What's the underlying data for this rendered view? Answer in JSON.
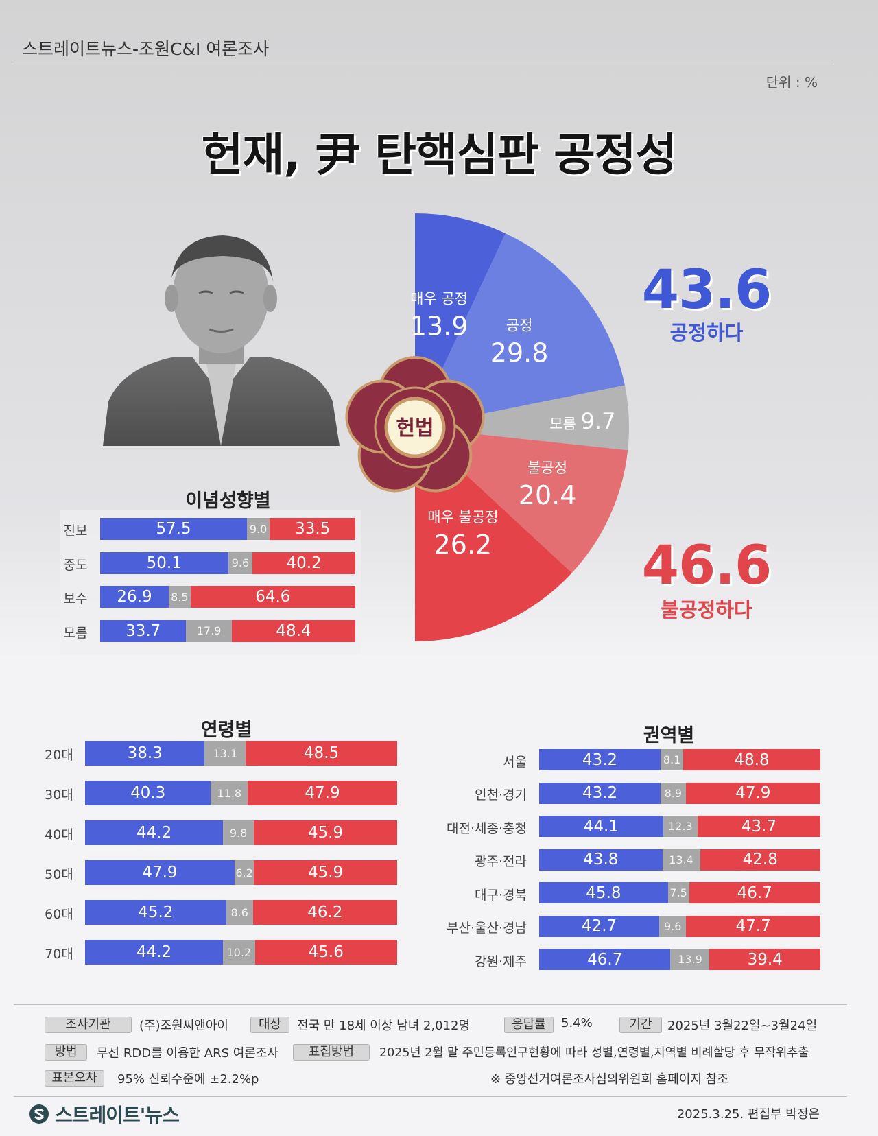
{
  "header": {
    "source": "스트레이트뉴스-조원C&I 여론조사",
    "unit": "단위 : %"
  },
  "title": "헌재, 尹 탄핵심판 공정성",
  "emblem": {
    "text": "헌법"
  },
  "colors": {
    "positive": "#4b60d9",
    "positive_light": "#6b80e0",
    "neutral": "#b4b4b4",
    "negative_light": "#e46f73",
    "negative": "#e5434a"
  },
  "totals": {
    "fair": {
      "value": "43.6",
      "label": "공정하다"
    },
    "unfair": {
      "value": "46.6",
      "label": "불공정하다"
    }
  },
  "chart_data": [
    {
      "type": "pie",
      "categories": [
        "매우 공정",
        "공정",
        "모름",
        "불공정",
        "매우 불공정"
      ],
      "values": [
        13.9,
        29.8,
        9.7,
        20.4,
        26.2
      ],
      "labels": [
        "13.9",
        "29.8",
        "9.7",
        "20.4",
        "26.2"
      ]
    },
    {
      "type": "bar",
      "title": "이념성향별",
      "categories": [
        "진보",
        "중도",
        "보수",
        "모름"
      ],
      "series": [
        {
          "values": [
            57.5,
            50.1,
            26.9,
            33.7
          ]
        },
        {
          "values": [
            9.0,
            9.6,
            8.5,
            17.9
          ]
        },
        {
          "values": [
            33.5,
            40.2,
            64.6,
            48.4
          ]
        }
      ],
      "labels": [
        [
          "57.5",
          "9.0",
          "33.5"
        ],
        [
          "50.1",
          "9.6",
          "40.2"
        ],
        [
          "26.9",
          "8.5",
          "64.6"
        ],
        [
          "33.7",
          "17.9",
          "48.4"
        ]
      ]
    },
    {
      "type": "bar",
      "title": "연령별",
      "categories": [
        "20대",
        "30대",
        "40대",
        "50대",
        "60대",
        "70대"
      ],
      "series": [
        {
          "values": [
            38.3,
            40.3,
            44.2,
            47.9,
            45.2,
            44.2
          ]
        },
        {
          "values": [
            13.1,
            11.8,
            9.8,
            6.2,
            8.6,
            10.2
          ]
        },
        {
          "values": [
            48.5,
            47.9,
            45.9,
            45.9,
            46.2,
            45.6
          ]
        }
      ],
      "labels": [
        [
          "38.3",
          "13.1",
          "48.5"
        ],
        [
          "40.3",
          "11.8",
          "47.9"
        ],
        [
          "44.2",
          "9.8",
          "45.9"
        ],
        [
          "47.9",
          "6.2",
          "45.9"
        ],
        [
          "45.2",
          "8.6",
          "46.2"
        ],
        [
          "44.2",
          "10.2",
          "45.6"
        ]
      ]
    },
    {
      "type": "bar",
      "title": "권역별",
      "categories": [
        "서울",
        "인천·경기",
        "대전·세종·충청",
        "광주·전라",
        "대구·경북",
        "부산·울산·경남",
        "강원·제주"
      ],
      "series": [
        {
          "values": [
            43.2,
            43.2,
            44.1,
            43.8,
            45.8,
            42.7,
            46.7
          ]
        },
        {
          "values": [
            8.1,
            8.9,
            12.3,
            13.4,
            7.5,
            9.6,
            13.9
          ]
        },
        {
          "values": [
            48.8,
            47.9,
            43.7,
            42.8,
            46.7,
            47.7,
            39.4
          ]
        }
      ],
      "labels": [
        [
          "43.2",
          "8.1",
          "48.8"
        ],
        [
          "43.2",
          "8.9",
          "47.9"
        ],
        [
          "44.1",
          "12.3",
          "43.7"
        ],
        [
          "43.8",
          "13.4",
          "42.8"
        ],
        [
          "45.8",
          "7.5",
          "46.7"
        ],
        [
          "42.7",
          "9.6",
          "47.7"
        ],
        [
          "46.7",
          "13.9",
          "39.4"
        ]
      ]
    }
  ],
  "footer": {
    "org_tag": "조사기관",
    "org": "(주)조원씨앤아이",
    "target_tag": "대상",
    "target": "전국 만 18세 이상 남녀 2,012명",
    "rate_tag": "응답률",
    "rate": "5.4%",
    "period_tag": "기간",
    "period": "2025년 3월22일~3월24일",
    "method_tag": "방법",
    "method": "무선 RDD를 이용한 ARS 여론조사",
    "sampling_tag": "표집방법",
    "sampling": "2025년 2월 말 주민등록인구현황에 따라 성별,연령별,지역별 비례할당 후 무작위추출",
    "error_tag": "표본오차",
    "error": "95% 신뢰수준에 ±2.2%p",
    "note": "※ 중앙선거여론조사심의위원회 홈페이지 참조",
    "logo_text": "스트레이트'뉴스",
    "credit": "2025.3.25. 편집부 박정은"
  }
}
